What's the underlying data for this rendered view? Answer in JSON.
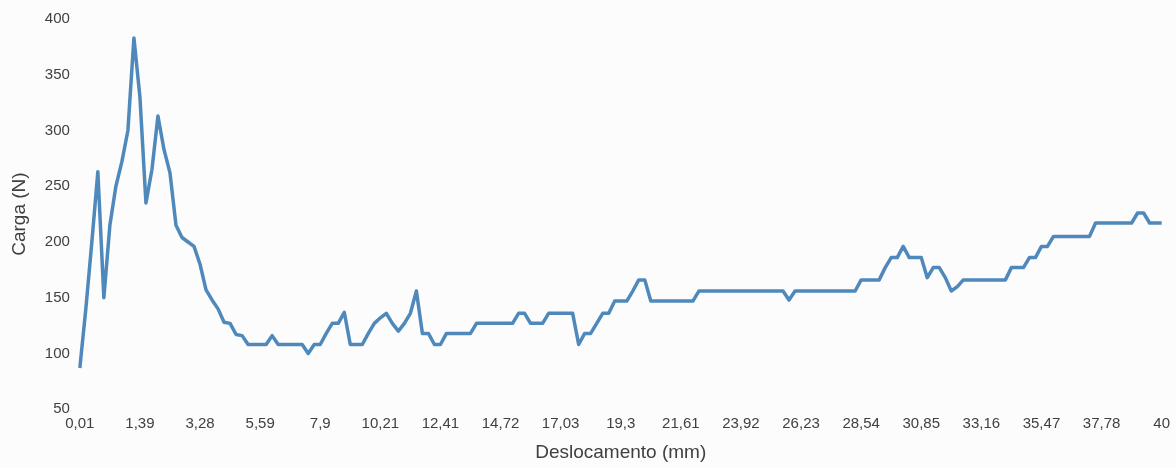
{
  "chart_data": {
    "type": "line",
    "xlabel": "Deslocamento (mm)",
    "ylabel": "Carga (N)",
    "categories": [
      "0,01",
      null,
      null,
      null,
      null,
      null,
      null,
      null,
      null,
      null,
      "1,39",
      null,
      null,
      null,
      null,
      null,
      null,
      null,
      null,
      null,
      "3,28",
      null,
      null,
      null,
      null,
      null,
      null,
      null,
      null,
      null,
      "5,59",
      null,
      null,
      null,
      null,
      null,
      null,
      null,
      null,
      null,
      "7,9",
      null,
      null,
      null,
      null,
      null,
      null,
      null,
      null,
      null,
      "10,21",
      null,
      null,
      null,
      null,
      null,
      null,
      null,
      null,
      null,
      "12,41",
      null,
      null,
      null,
      null,
      null,
      null,
      null,
      null,
      null,
      "14,72",
      null,
      null,
      null,
      null,
      null,
      null,
      null,
      null,
      null,
      "17,03",
      null,
      null,
      null,
      null,
      null,
      null,
      null,
      null,
      null,
      "19,3",
      null,
      null,
      null,
      null,
      null,
      null,
      null,
      null,
      null,
      "21,61",
      null,
      null,
      null,
      null,
      null,
      null,
      null,
      null,
      null,
      "23,92",
      null,
      null,
      null,
      null,
      null,
      null,
      null,
      null,
      null,
      "26,23",
      null,
      null,
      null,
      null,
      null,
      null,
      null,
      null,
      null,
      "28,54",
      null,
      null,
      null,
      null,
      null,
      null,
      null,
      null,
      null,
      "30,85",
      null,
      null,
      null,
      null,
      null,
      null,
      null,
      null,
      null,
      "33,16",
      null,
      null,
      null,
      null,
      null,
      null,
      null,
      null,
      null,
      "35,47",
      null,
      null,
      null,
      null,
      null,
      null,
      null,
      null,
      null,
      "37,78",
      null,
      null,
      null,
      null,
      null,
      null,
      null,
      null,
      null,
      "40"
    ],
    "series": [
      {
        "color": "#4f88bb",
        "values": [
          87,
          140,
          200,
          263,
          150,
          215,
          250,
          272,
          300,
          383,
          330,
          235,
          265,
          313,
          283,
          262,
          215,
          204,
          200,
          196,
          180,
          157,
          148,
          140,
          128,
          127,
          117,
          116,
          108,
          108,
          108,
          108,
          116,
          108,
          108,
          108,
          108,
          108,
          100,
          108,
          108,
          118,
          127,
          127,
          137,
          108,
          108,
          108,
          118,
          127,
          132,
          136,
          127,
          120,
          127,
          136,
          156,
          118,
          118,
          108,
          108,
          118,
          118,
          118,
          118,
          118,
          127,
          127,
          127,
          127,
          127,
          127,
          127,
          136,
          136,
          127,
          127,
          127,
          136,
          136,
          136,
          136,
          136,
          108,
          118,
          118,
          127,
          136,
          136,
          147,
          147,
          147,
          156,
          166,
          166,
          147,
          147,
          147,
          147,
          147,
          147,
          147,
          147,
          156,
          156,
          156,
          156,
          156,
          156,
          156,
          156,
          156,
          156,
          156,
          156,
          156,
          156,
          156,
          148,
          156,
          156,
          156,
          156,
          156,
          156,
          156,
          156,
          156,
          156,
          156,
          166,
          166,
          166,
          166,
          177,
          186,
          186,
          196,
          186,
          186,
          186,
          168,
          177,
          177,
          168,
          156,
          160,
          166,
          166,
          166,
          166,
          166,
          166,
          166,
          166,
          177,
          177,
          177,
          186,
          186,
          196,
          196,
          205,
          205,
          205,
          205,
          205,
          205,
          205,
          217,
          217,
          217,
          217,
          217,
          217,
          217,
          226,
          226,
          217,
          217,
          217
        ]
      }
    ],
    "ylim": [
      50,
      400
    ],
    "yticks": [
      50,
      100,
      150,
      200,
      250,
      300,
      350,
      400
    ],
    "grid": false
  }
}
